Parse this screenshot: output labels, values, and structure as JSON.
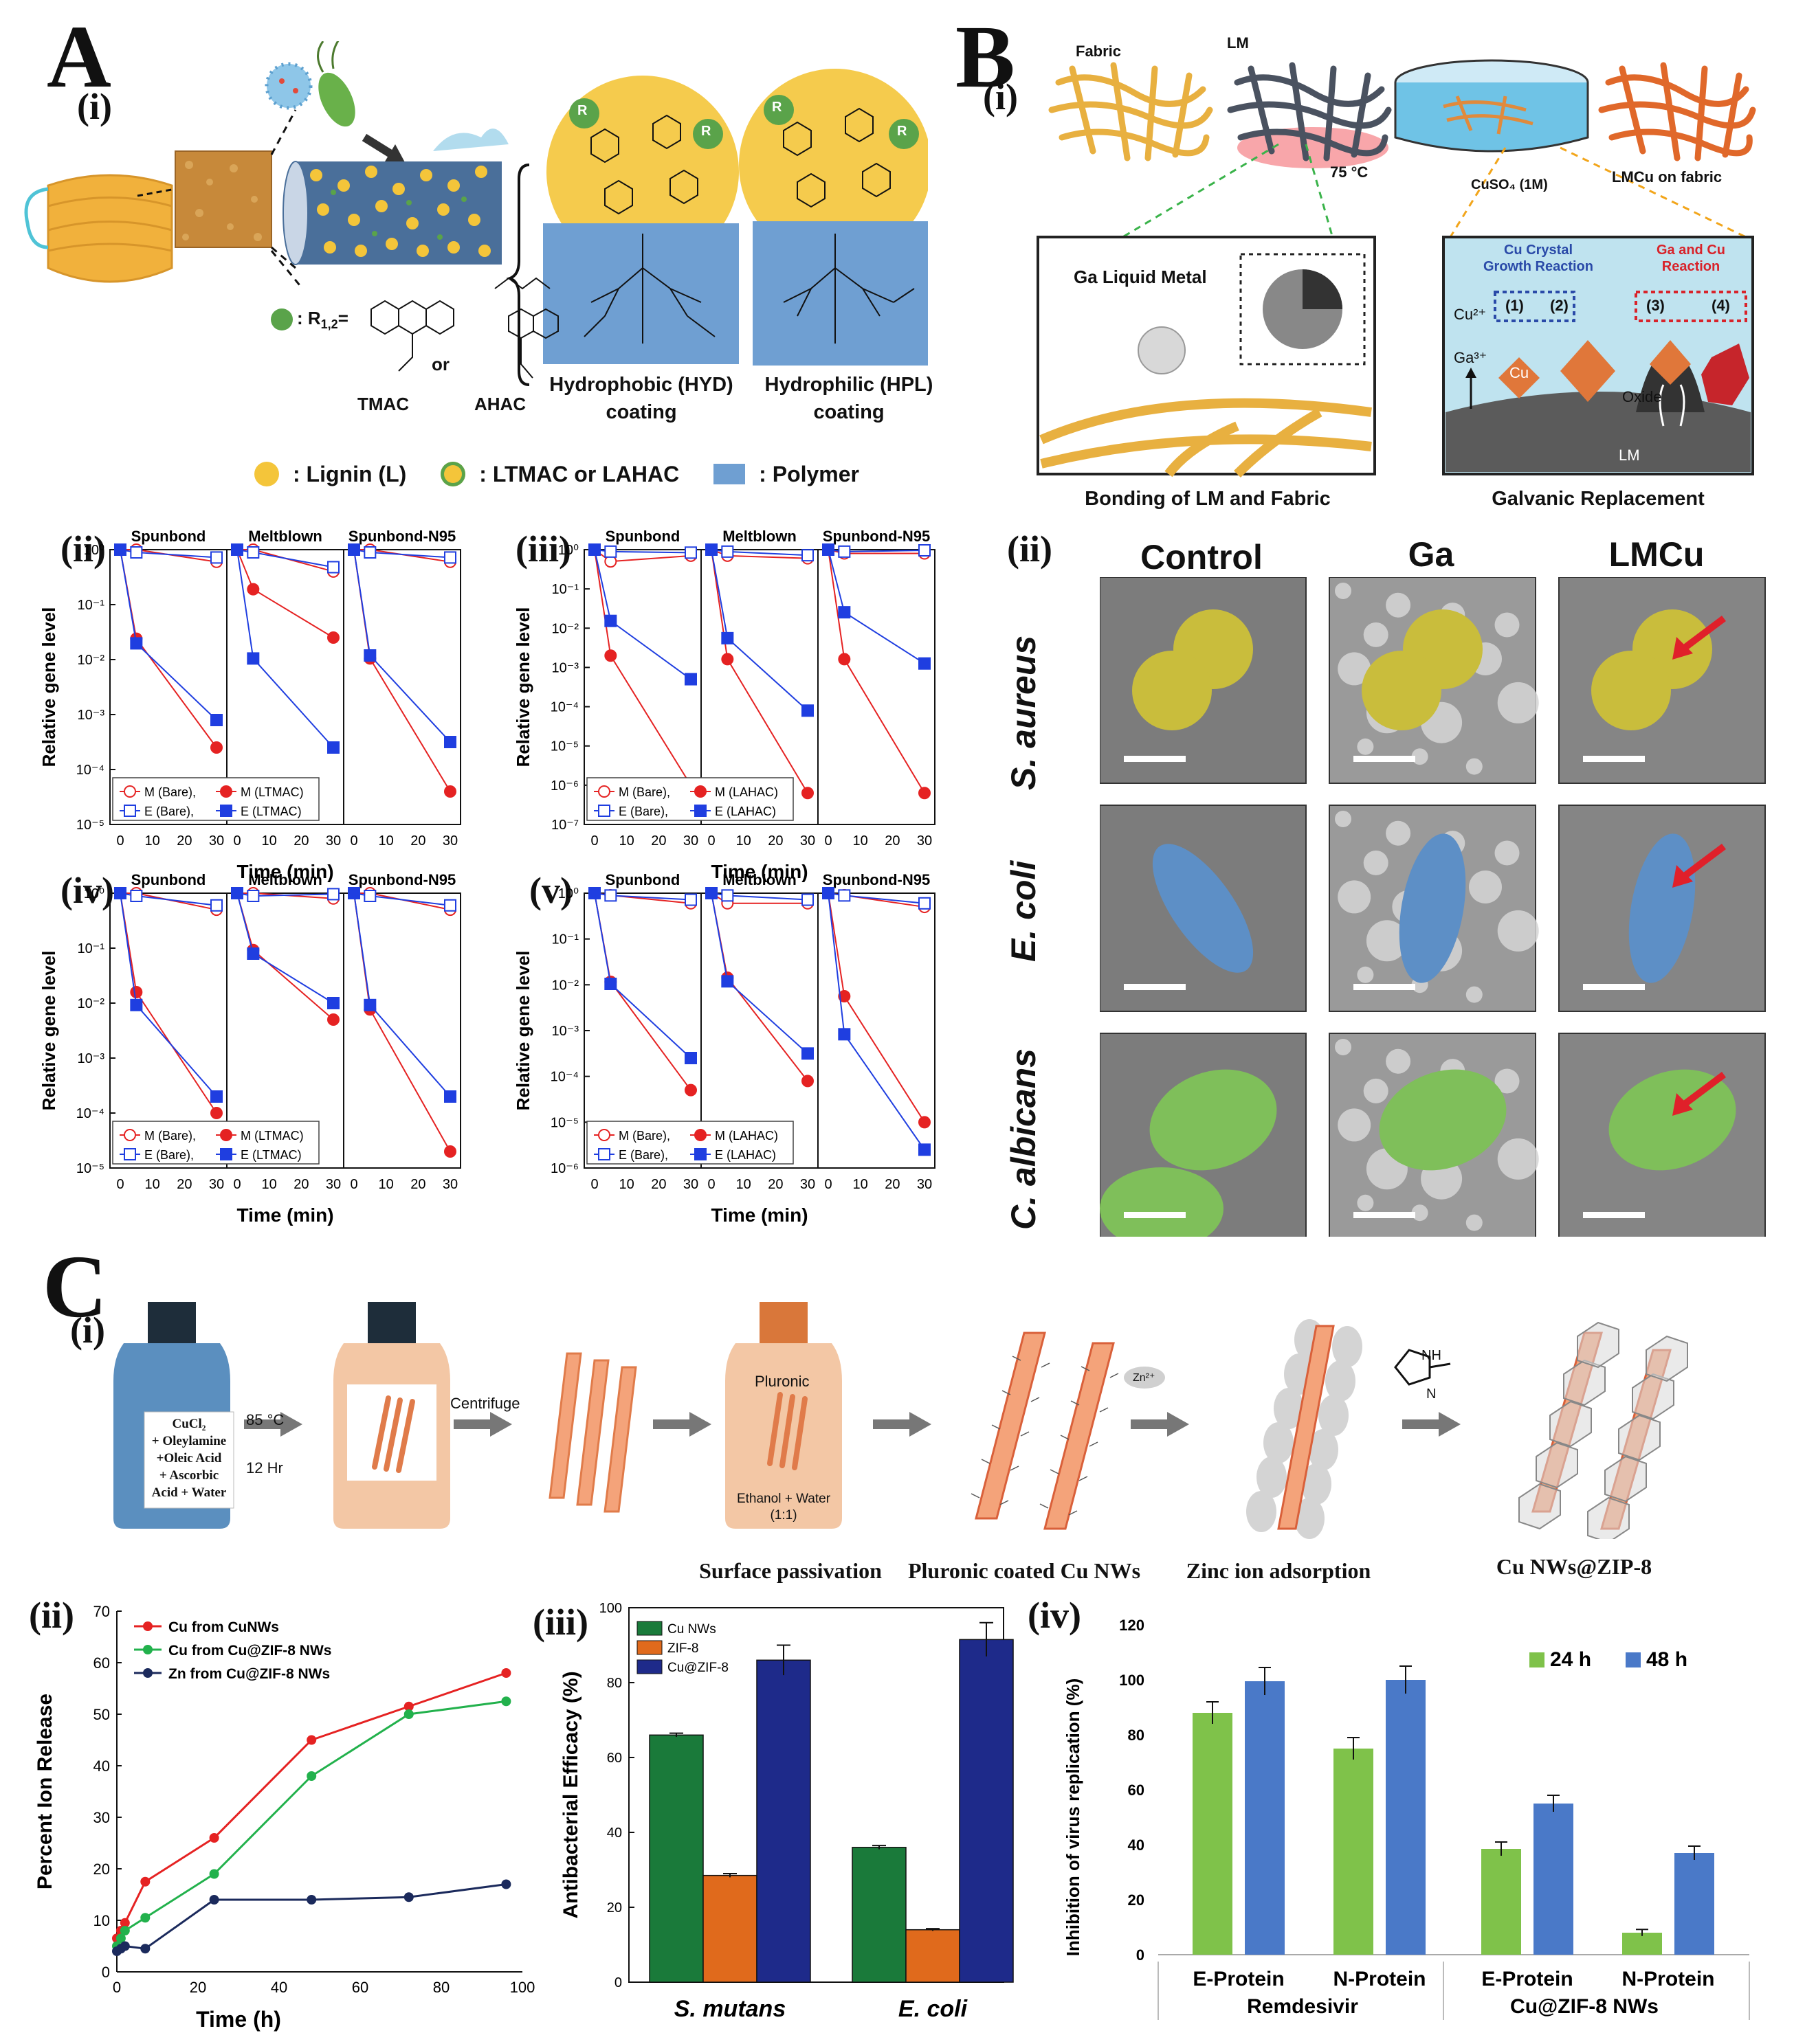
{
  "panelA": {
    "letter": "A",
    "i": {
      "roman": "(i)",
      "r_label": ": R",
      "r_sub": "1,2",
      "r_eq": "=",
      "or": "or",
      "tmac": "TMAC",
      "ahac": "AHAC",
      "r1": "R",
      "r2": "R",
      "hyd": [
        "Hydrophobic (HYD)",
        "coating"
      ],
      "hpl": [
        "Hydrophilic (HPL)",
        "coating"
      ],
      "legend": [
        ": Lignin (L)",
        ": LTMAC or LAHAC",
        ": Polymer"
      ],
      "colors": {
        "lignin": "#f4c53a",
        "polymer": "#6f9fd2",
        "green": "#5aa34a",
        "mask": "#f1b13c"
      }
    },
    "plots": [
      {
        "roman": "(ii)",
        "legend": [
          "M (Bare),",
          "M (LTMAC)",
          "E (Bare),",
          "E (LTMAC)"
        ]
      },
      {
        "roman": "(iii)",
        "legend": [
          "M (Bare),",
          "M (LAHAC)",
          "E (Bare),",
          "E (LAHAC)"
        ]
      },
      {
        "roman": "(iv)",
        "legend": [
          "M (Bare),",
          "M (LTMAC)",
          "E (Bare),",
          "E (LTMAC)"
        ]
      },
      {
        "roman": "(v)",
        "legend": [
          "M (Bare),",
          "M (LAHAC)",
          "E (Bare),",
          "E (LAHAC)"
        ]
      }
    ],
    "plot_common": {
      "subtitles": [
        "Spunbond",
        "Meltblown",
        "Spunbond-N95"
      ],
      "ylabel": "Relative gene level",
      "xlabel": "Time (min)",
      "xticks": [
        "0",
        "10",
        "20",
        "30"
      ]
    }
  },
  "panelB": {
    "letter": "B",
    "i": {
      "roman": "(i)",
      "fabric": "Fabric",
      "lm": "LM",
      "temp": "75 °C",
      "cuso4": "CuSO₄ (1M)",
      "lmcu": "LMCu on fabric",
      "ga_lm": "Ga Liquid Metal",
      "bonding": "Bonding of LM and Fabric",
      "galvanic": "Galvanic Replacement",
      "cu_crystal": [
        "Cu Crystal",
        "Growth Reaction"
      ],
      "ga_cu": [
        "Ga and Cu",
        "Reaction"
      ],
      "steps": [
        "(1)",
        "(2)",
        "(3)",
        "(4)"
      ],
      "cu2": "Cu²⁺",
      "ga3": "Ga³⁺",
      "cu": "Cu",
      "oxide": "Oxide",
      "lm2": "LM"
    },
    "ii": {
      "roman": "(ii)",
      "cols": [
        "Control",
        "Ga",
        "LMCu"
      ],
      "rows": [
        "S. aureus",
        "E. coli",
        "C. albicans"
      ],
      "colors": [
        "#c9bd3c",
        "#5d8fc6",
        "#7fbf5a"
      ]
    }
  },
  "panelC": {
    "letter": "C",
    "i": {
      "roman": "(i)",
      "reagents": [
        "CuCl₂",
        "+ Oleylamine",
        "+Oleic Acid",
        "+ Ascorbic",
        "Acid + Water"
      ],
      "cond": [
        "85 °C",
        "12 Hr"
      ],
      "centrifuge": "Centrifuge",
      "pluronic": "Pluronic",
      "solvent": [
        "Ethanol + Water",
        "(1:1)"
      ],
      "zn": "Zn²⁺",
      "nh": "NH",
      "n": "N",
      "captions": [
        "Surface passivation",
        "Pluronic coated Cu NWs",
        "Zinc ion adsorption",
        "Cu NWs@ZIP-8"
      ]
    },
    "ii": {
      "roman": "(ii)"
    },
    "iii": {
      "roman": "(iii)"
    },
    "iv": {
      "roman": "(iv)"
    }
  },
  "chart_data": [
    {
      "type": "line",
      "title": "",
      "xlabel": "Time (h)",
      "ylabel": "Percent Ion Release",
      "xlim": [
        0,
        100
      ],
      "ylim": [
        0,
        70
      ],
      "xticks": [
        0,
        20,
        40,
        60,
        80,
        100
      ],
      "yticks": [
        0,
        10,
        20,
        30,
        40,
        50,
        60,
        70
      ],
      "series": [
        {
          "name": "Cu from CuNWs",
          "color": "#e52222",
          "x": [
            0,
            1,
            2,
            7,
            24,
            48,
            72,
            96
          ],
          "y": [
            6.5,
            8,
            9.5,
            17.5,
            26,
            45,
            51.5,
            58
          ]
        },
        {
          "name": "Cu from Cu@ZIF-8 NWs",
          "color": "#22b14c",
          "x": [
            0,
            1,
            2,
            7,
            24,
            48,
            72,
            96
          ],
          "y": [
            5,
            6.5,
            8,
            10.5,
            19,
            38,
            50,
            52.5
          ]
        },
        {
          "name": "Zn from Cu@ZIF-8 NWs",
          "color": "#1b2a5c",
          "x": [
            0,
            1,
            2,
            7,
            24,
            48,
            72,
            96
          ],
          "y": [
            4,
            4.5,
            5,
            4.5,
            14,
            14,
            14.5,
            17
          ]
        }
      ]
    },
    {
      "type": "bar",
      "title": "",
      "xlabel": "",
      "ylabel": "Antibacterial Efficacy (%)",
      "ylim": [
        0,
        100
      ],
      "yticks": [
        0,
        20,
        40,
        60,
        80,
        100
      ],
      "categories": [
        "S. mutans",
        "E. coli"
      ],
      "series": [
        {
          "name": "Cu NWs",
          "color": "#1a7a3a",
          "values": [
            66,
            36
          ],
          "errors": [
            0.5,
            0.5
          ]
        },
        {
          "name": "ZIF-8",
          "color": "#e06a1c",
          "values": [
            28.5,
            14
          ],
          "errors": [
            0.5,
            0.3
          ]
        },
        {
          "name": "Cu@ZIF-8",
          "color": "#1e2a8a",
          "values": [
            86,
            91.5
          ],
          "errors": [
            4,
            4.5
          ]
        }
      ]
    },
    {
      "type": "bar",
      "title": "",
      "xlabel": "",
      "ylabel": "Inhibition of virus replication (%)",
      "ylim": [
        0,
        120
      ],
      "yticks": [
        0,
        20,
        40,
        60,
        80,
        100,
        120
      ],
      "categories": [
        "E-Protein",
        "N-Protein",
        "E-Protein",
        "N-Protein"
      ],
      "groups": [
        "Remdesivir",
        "Cu@ZIF-8 NWs"
      ],
      "series": [
        {
          "name": "24 h",
          "color": "#7fc24a",
          "values": [
            88,
            75,
            38.5,
            8
          ],
          "errors": [
            4,
            4,
            2.5,
            1.2
          ]
        },
        {
          "name": "48 h",
          "color": "#4a79c8",
          "values": [
            99.5,
            100,
            55,
            37
          ],
          "errors": [
            5,
            5,
            3,
            2.5
          ]
        }
      ]
    }
  ]
}
